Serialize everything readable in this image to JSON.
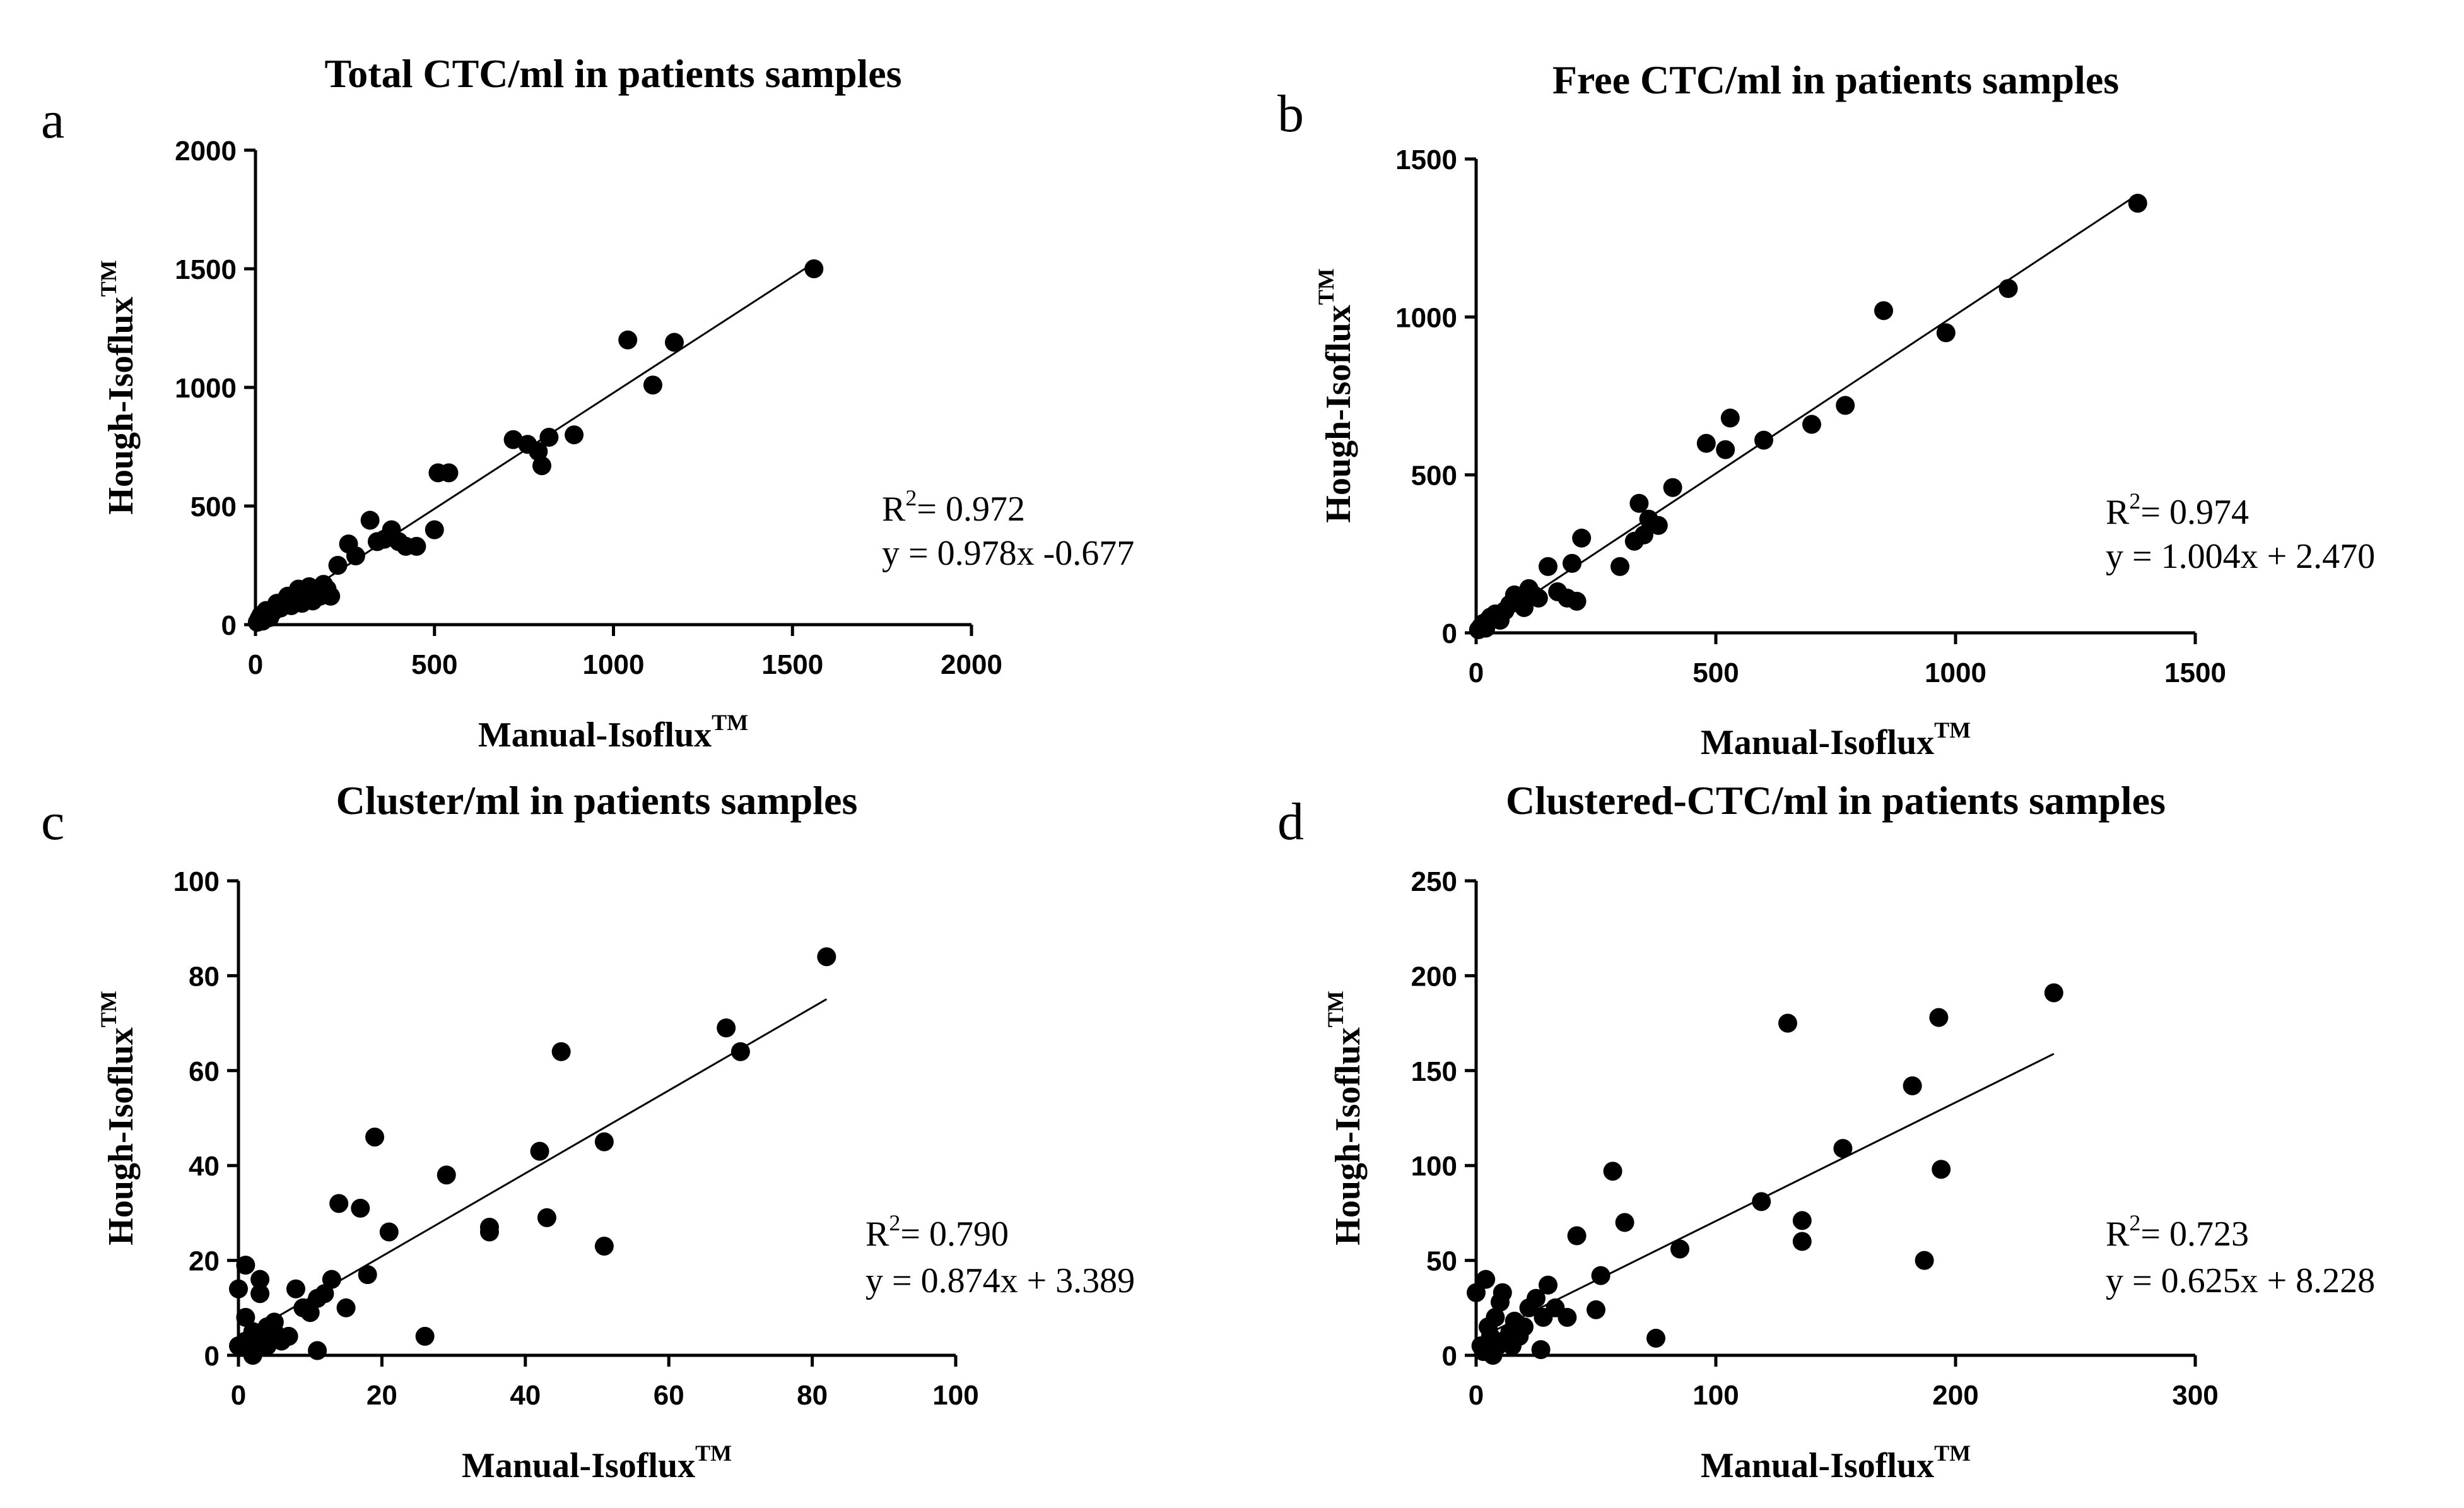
{
  "chart_data": [
    {
      "type": "scatter",
      "panel": "a",
      "title": "Total CTC/ml in patients samples",
      "xlabel": "Manual-Isoflux",
      "xlabel_sup": "TM",
      "ylabel": "Hough-Isoflux",
      "ylabel_sup": "TM",
      "xlim": [
        0,
        2000
      ],
      "ylim": [
        0,
        2000
      ],
      "xticks": [
        0,
        500,
        1000,
        1500,
        2000
      ],
      "yticks": [
        0,
        500,
        1000,
        1500,
        2000
      ],
      "r2_label": "R",
      "r2_sup": "2",
      "r2_value": "= 0.972",
      "equation": "y = 0.978x -0.677",
      "regression": {
        "slope": 0.978,
        "intercept": -0.677,
        "x_range": [
          0,
          1560
        ]
      },
      "x": [
        5,
        10,
        15,
        20,
        25,
        30,
        40,
        50,
        60,
        70,
        80,
        90,
        100,
        110,
        120,
        130,
        140,
        150,
        160,
        170,
        180,
        190,
        200,
        210,
        230,
        260,
        280,
        320,
        340,
        360,
        380,
        400,
        420,
        450,
        500,
        510,
        540,
        720,
        760,
        790,
        800,
        820,
        890,
        1040,
        1110,
        1170,
        1560
      ],
      "y": [
        10,
        25,
        40,
        15,
        50,
        60,
        30,
        55,
        90,
        70,
        100,
        120,
        80,
        110,
        150,
        90,
        130,
        160,
        100,
        140,
        120,
        170,
        150,
        120,
        250,
        340,
        290,
        440,
        350,
        360,
        400,
        350,
        330,
        330,
        400,
        640,
        640,
        780,
        760,
        730,
        670,
        790,
        800,
        1200,
        1010,
        1190,
        1500
      ]
    },
    {
      "type": "scatter",
      "panel": "b",
      "title": "Free CTC/ml in patients samples",
      "xlabel": "Manual-Isoflux",
      "xlabel_sup": "TM",
      "ylabel": "Hough-Isoflux",
      "ylabel_sup": "TM",
      "xlim": [
        0,
        1500
      ],
      "ylim": [
        0,
        1500
      ],
      "xticks": [
        0,
        500,
        1000,
        1500
      ],
      "yticks": [
        0,
        500,
        1000,
        1500
      ],
      "r2_label": "R",
      "r2_sup": "2",
      "r2_value": "= 0.974",
      "equation": "y = 1.004x + 2.470",
      "regression": {
        "slope": 1.004,
        "intercept": 2.47,
        "x_range": [
          0,
          1380
        ]
      },
      "x": [
        5,
        10,
        15,
        20,
        25,
        30,
        40,
        50,
        60,
        70,
        80,
        90,
        100,
        110,
        120,
        130,
        150,
        170,
        190,
        200,
        210,
        220,
        300,
        330,
        340,
        350,
        360,
        380,
        410,
        480,
        520,
        530,
        600,
        700,
        770,
        850,
        980,
        1110,
        1380
      ],
      "y": [
        10,
        20,
        30,
        15,
        40,
        50,
        60,
        40,
        70,
        90,
        120,
        100,
        80,
        140,
        120,
        110,
        210,
        130,
        110,
        220,
        100,
        300,
        210,
        290,
        410,
        310,
        360,
        340,
        460,
        600,
        580,
        680,
        610,
        660,
        720,
        1020,
        950,
        1090,
        1360
      ]
    },
    {
      "type": "scatter",
      "panel": "c",
      "title": "Cluster/ml in patients samples",
      "xlabel": "Manual-Isoflux",
      "xlabel_sup": "TM",
      "ylabel": "Hough-Isoflux",
      "ylabel_sup": "TM",
      "xlim": [
        0,
        100
      ],
      "ylim": [
        0,
        100
      ],
      "xticks": [
        0,
        20,
        40,
        60,
        80,
        100
      ],
      "yticks": [
        0,
        20,
        40,
        60,
        80,
        100
      ],
      "r2_label": "R",
      "r2_sup": "2",
      "r2_value": "= 0.790",
      "equation": "y = 0.874x + 3.389",
      "regression": {
        "slope": 0.874,
        "intercept": 3.389,
        "x_range": [
          0,
          82
        ]
      },
      "x": [
        0,
        0,
        1,
        1,
        1,
        2,
        2,
        2,
        3,
        3,
        3,
        4,
        4,
        5,
        5,
        6,
        7,
        8,
        9,
        10,
        11,
        11,
        12,
        13,
        14,
        15,
        17,
        18,
        19,
        21,
        26,
        29,
        35,
        35,
        42,
        43,
        45,
        51,
        51,
        68,
        70,
        82
      ],
      "y": [
        2,
        14,
        19,
        8,
        3,
        1,
        5,
        0,
        16,
        13,
        4,
        2,
        6,
        7,
        5,
        3,
        4,
        14,
        10,
        9,
        1,
        12,
        13,
        16,
        32,
        10,
        31,
        17,
        46,
        26,
        4,
        38,
        27,
        26,
        43,
        29,
        64,
        45,
        23,
        69,
        64,
        84
      ]
    },
    {
      "type": "scatter",
      "panel": "d",
      "title": "Clustered-CTC/ml in patients samples",
      "xlabel": "Manual-Isoflux",
      "xlabel_sup": "TM",
      "ylabel": "Hough-Isoflux",
      "ylabel_sup": "TM",
      "xlim": [
        0,
        300
      ],
      "ylim": [
        0,
        250
      ],
      "xticks": [
        0,
        100,
        200,
        300
      ],
      "yticks": [
        0,
        50,
        100,
        150,
        200,
        250
      ],
      "r2_label": "R",
      "r2_sup": "2",
      "r2_value": "= 0.723",
      "equation": "y = 0.625x + 8.228",
      "regression": {
        "slope": 0.625,
        "intercept": 8.228,
        "x_range": [
          0,
          241
        ]
      },
      "x": [
        0,
        2,
        3,
        4,
        5,
        6,
        7,
        8,
        9,
        10,
        11,
        12,
        14,
        15,
        16,
        18,
        20,
        22,
        25,
        27,
        28,
        30,
        33,
        38,
        42,
        50,
        52,
        57,
        62,
        75,
        85,
        119,
        130,
        136,
        136,
        153,
        182,
        187,
        193,
        194,
        241
      ],
      "y": [
        33,
        5,
        2,
        40,
        15,
        10,
        0,
        20,
        5,
        28,
        33,
        8,
        12,
        5,
        18,
        10,
        15,
        25,
        30,
        3,
        20,
        37,
        25,
        20,
        63,
        24,
        42,
        97,
        70,
        9,
        56,
        81,
        175,
        71,
        60,
        109,
        142,
        50,
        178,
        98,
        191
      ]
    }
  ]
}
